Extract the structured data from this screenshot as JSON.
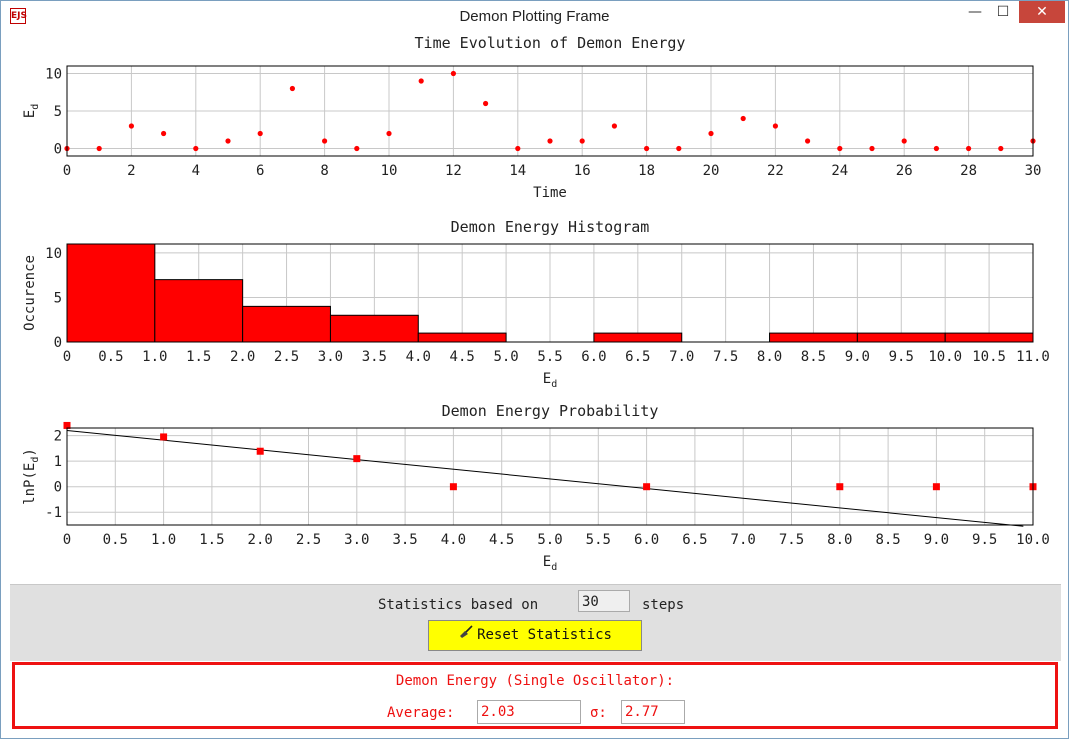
{
  "window": {
    "title": "Demon Plotting Frame",
    "icon": "java-app-icon",
    "icon_text": "EJS",
    "controls": {
      "minimize": "—",
      "maximize": "☐",
      "close": "✕"
    }
  },
  "colors": {
    "marker": "#ff0000",
    "bar": "#ff0000",
    "fit_line": "#000000",
    "highlight_border": "#ee1111",
    "button": "#ffff00"
  },
  "chart_data": [
    {
      "type": "scatter",
      "title": "Time Evolution of Demon Energy",
      "xlabel": "Time",
      "ylabel": "Ed",
      "xlim": [
        0,
        30
      ],
      "ylim": [
        -1,
        11
      ],
      "x_ticks": [
        0,
        2,
        4,
        6,
        8,
        10,
        12,
        14,
        16,
        18,
        20,
        22,
        24,
        26,
        28,
        30
      ],
      "y_ticks": [
        0,
        5,
        10
      ],
      "grid": true,
      "series": [
        {
          "x": [
            0,
            1,
            2,
            3,
            4,
            5,
            6,
            7,
            8,
            9,
            10,
            11,
            12,
            13,
            14,
            15,
            16,
            17,
            18,
            19,
            20,
            21,
            22,
            23,
            24,
            25,
            26,
            27,
            28,
            29,
            30
          ],
          "values": [
            0,
            0,
            3,
            2,
            0,
            1,
            2,
            8,
            1,
            0,
            2,
            9,
            10,
            6,
            0,
            1,
            1,
            3,
            0,
            0,
            2,
            4,
            3,
            1,
            0,
            0,
            1,
            0,
            0,
            0,
            1
          ]
        }
      ]
    },
    {
      "type": "bar",
      "title": "Demon Energy Histogram",
      "xlabel": "Ed",
      "ylabel": "Occurence",
      "xlim": [
        0,
        11
      ],
      "ylim": [
        0,
        11
      ],
      "x_ticks": [
        "0",
        "0.5",
        "1.0",
        "1.5",
        "2.0",
        "2.5",
        "3.0",
        "3.5",
        "4.0",
        "4.5",
        "5.0",
        "5.5",
        "6.0",
        "6.5",
        "7.0",
        "7.5",
        "8.0",
        "8.5",
        "9.0",
        "9.5",
        "10.0",
        "10.5",
        "11.0"
      ],
      "y_ticks": [
        0,
        5,
        10
      ],
      "grid": true,
      "bin_edges": [
        0,
        1,
        2,
        3,
        4,
        5,
        6,
        7,
        8,
        9,
        10,
        11
      ],
      "values": [
        11,
        7,
        4,
        3,
        1,
        0,
        1,
        0,
        1,
        1,
        1
      ]
    },
    {
      "type": "scatter",
      "title": "Demon Energy Probability",
      "xlabel": "Ed",
      "ylabel": "lnP(Ed)",
      "xlim": [
        0,
        10
      ],
      "ylim": [
        -1.5,
        2.3
      ],
      "x_ticks": [
        "0",
        "0.5",
        "1.0",
        "1.5",
        "2.0",
        "2.5",
        "3.0",
        "3.5",
        "4.0",
        "4.5",
        "5.0",
        "5.5",
        "6.0",
        "6.5",
        "7.0",
        "7.5",
        "8.0",
        "8.5",
        "9.0",
        "9.5",
        "10.0"
      ],
      "y_ticks": [
        -1,
        0,
        1,
        2
      ],
      "grid": true,
      "series": [
        {
          "x": [
            0,
            1,
            2,
            3,
            4,
            6,
            8,
            9,
            10
          ],
          "values": [
            2.4,
            1.95,
            1.39,
            1.1,
            0,
            0,
            0,
            0,
            0
          ]
        }
      ],
      "fit_line": {
        "x": [
          0,
          9.9
        ],
        "values": [
          2.2,
          -1.55
        ]
      }
    }
  ],
  "controls": {
    "stats_prefix": "Statistics based on",
    "steps_value": "30",
    "stats_suffix": "steps",
    "reset_label": "Reset Statistics",
    "reset_icon": "broom-icon"
  },
  "results": {
    "title": "Demon Energy (Single Oscillator):",
    "average_label": "Average:",
    "average_value": "2.03",
    "sigma_label": "σ:",
    "sigma_value": "2.77"
  }
}
